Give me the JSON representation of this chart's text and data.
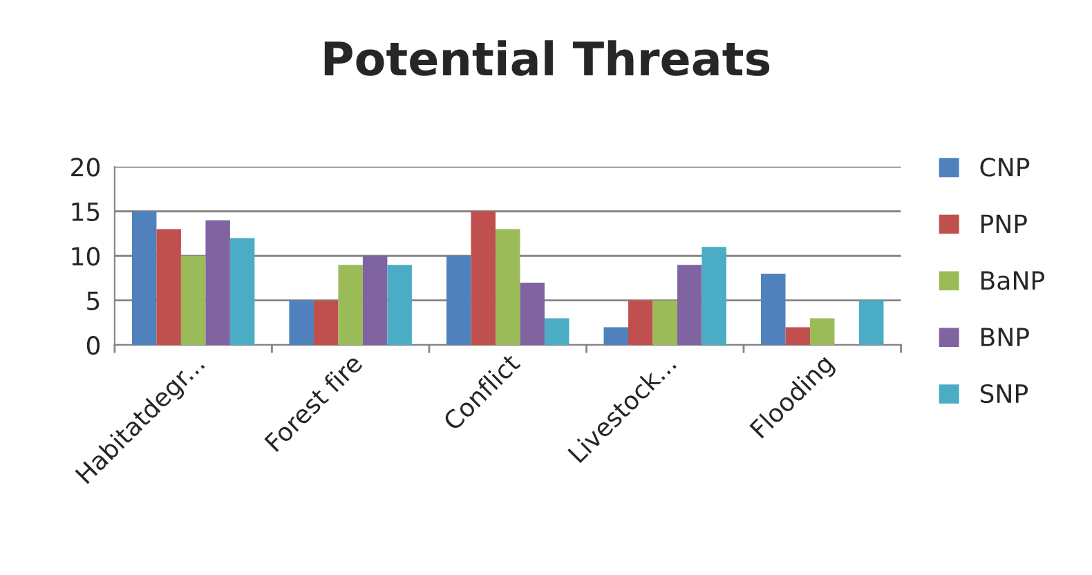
{
  "chart_data": {
    "type": "bar",
    "title": "Potential Threats",
    "categories": [
      "Habitatdegr...",
      "Forest fire",
      "Conflict",
      "Livestock...",
      "Flooding"
    ],
    "series": [
      {
        "name": "CNP",
        "color": "#4f81bd",
        "values": [
          15,
          5,
          10,
          2,
          8
        ]
      },
      {
        "name": "PNP",
        "color": "#c0504d",
        "values": [
          13,
          5,
          15,
          5,
          2
        ]
      },
      {
        "name": "BaNP",
        "color": "#9bbb59",
        "values": [
          10,
          9,
          13,
          5,
          3
        ]
      },
      {
        "name": "BNP",
        "color": "#8064a2",
        "values": [
          14,
          10,
          7,
          9,
          null
        ]
      },
      {
        "name": "SNP",
        "color": "#4bacc6",
        "values": [
          12,
          9,
          3,
          11,
          5
        ]
      }
    ],
    "ylim": [
      0,
      20
    ],
    "yticks": [
      0,
      5,
      10,
      15,
      20
    ],
    "grid": "y",
    "legend": "right"
  }
}
